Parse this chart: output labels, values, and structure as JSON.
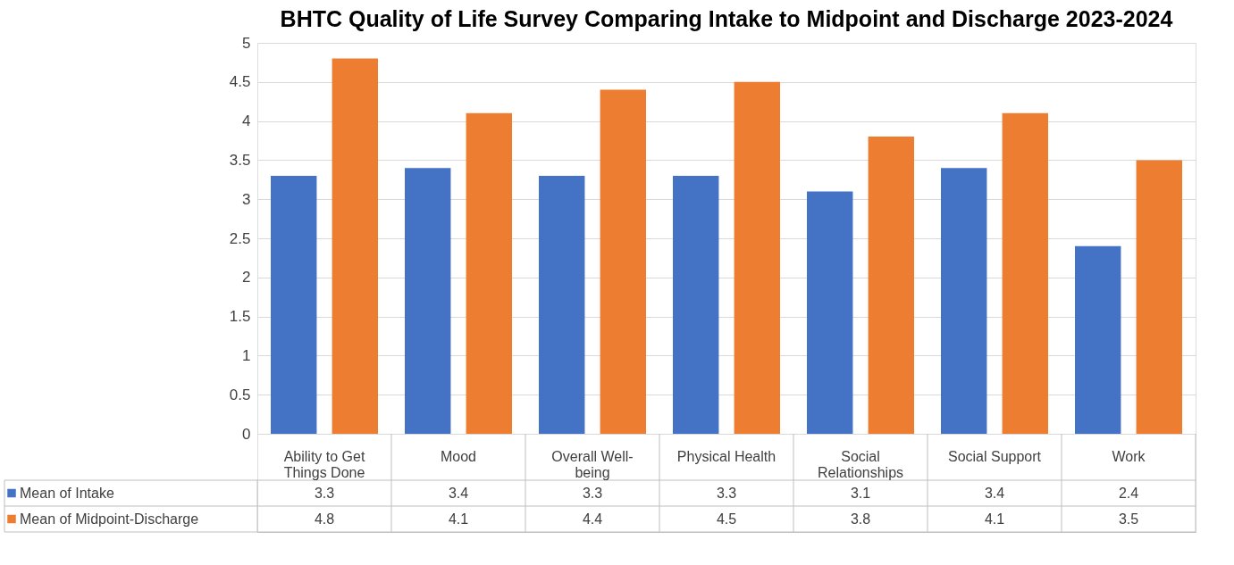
{
  "chart_data": {
    "type": "bar",
    "title": "BHTC Quality of Life Survey Comparing Intake to Midpoint and Discharge 2023-2024",
    "categories": [
      "Ability to Get Things Done",
      "Mood",
      "Overall Well-being",
      "Physical Health",
      "Social Relationships",
      "Social Support",
      "Work"
    ],
    "series": [
      {
        "name": "Mean of Intake",
        "color": "#4472c4",
        "values": [
          3.3,
          3.4,
          3.3,
          3.3,
          3.1,
          3.4,
          2.4
        ]
      },
      {
        "name": "Mean of Midpoint-Discharge",
        "color": "#ed7d31",
        "values": [
          4.8,
          4.1,
          4.4,
          4.5,
          3.8,
          4.1,
          3.5
        ]
      }
    ],
    "ylim": [
      0,
      5
    ],
    "yticks": [
      0,
      0.5,
      1,
      1.5,
      2,
      2.5,
      3,
      3.5,
      4,
      4.5,
      5
    ],
    "grid": "y",
    "legend": "bottom",
    "data_labels": true
  }
}
